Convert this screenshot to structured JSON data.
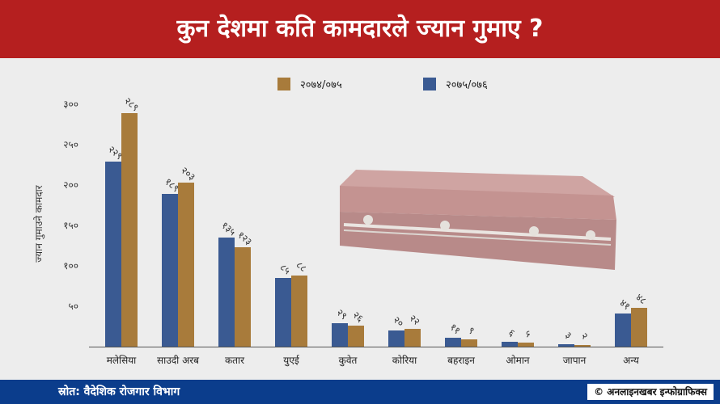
{
  "header": {
    "title": "कुन देशमा कति कामदारले ज्यान गुमाए ?"
  },
  "footer": {
    "source": "स्रोत: वैदेशिक रोजगार विभाग",
    "credit": "© अनलाइनखबर इन्फोग्राफिक्स"
  },
  "chart_data": {
    "type": "bar",
    "ylabel": "ज्यान गुमाउने कामदार",
    "ylim": [
      0,
      300
    ],
    "yticks": [
      50,
      100,
      150,
      200,
      250,
      300
    ],
    "ytick_labels": [
      "५०",
      "१००",
      "१५०",
      "२००",
      "२५०",
      "३००"
    ],
    "grid": false,
    "legend_position": "top",
    "categories": [
      "मलेसिया",
      "साउदी अरब",
      "कतार",
      "युएई",
      "कुवेत",
      "कोरिया",
      "बहराइन",
      "ओमान",
      "जापान",
      "अन्य"
    ],
    "series": [
      {
        "name": "२०७५/०७६",
        "color": "#3a5a92",
        "values": [
          229,
          189,
          135,
          85,
          29,
          20,
          11,
          6,
          3,
          41
        ],
        "labels": [
          "२२९",
          "१८९",
          "१३५",
          "८५",
          "२९",
          "२०",
          "११",
          "६",
          "३",
          "४१"
        ]
      },
      {
        "name": "२०७४/०७५",
        "color": "#a87b3b",
        "values": [
          289,
          203,
          123,
          88,
          26,
          22,
          9,
          5,
          2,
          48
        ],
        "labels": [
          "२८९",
          "२०३",
          "१२३",
          "८८",
          "२६",
          "२२",
          "९",
          "५",
          "२",
          "४८"
        ]
      }
    ],
    "legend_order": [
      "२०७४/०७५",
      "२०७५/०७६"
    ]
  },
  "illustration": {
    "icon": "coffin-icon",
    "color": "#b04a45"
  }
}
